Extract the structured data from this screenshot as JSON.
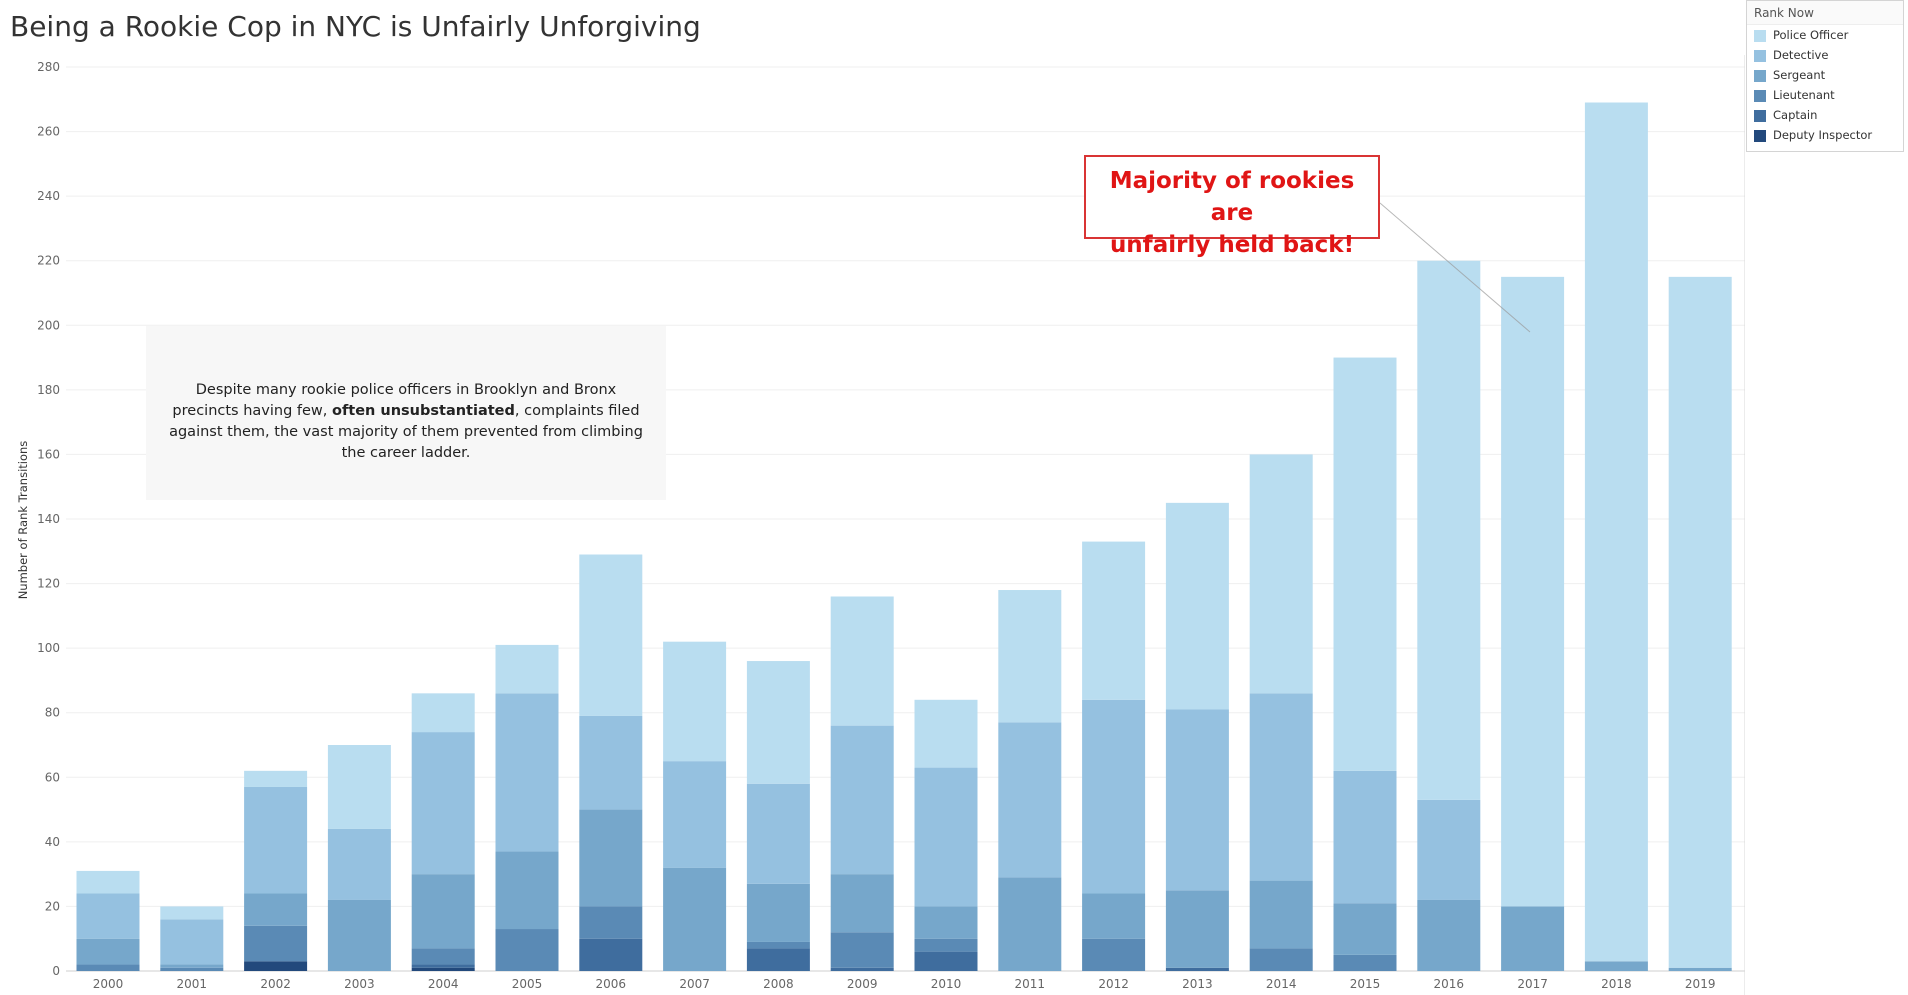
{
  "title": "Being a Rookie Cop in NYC is Unfairly Unforgiving",
  "legend": {
    "title": "Rank Now",
    "items": [
      {
        "label": "Police Officer",
        "color": "#b9ddf0"
      },
      {
        "label": "Detective",
        "color": "#95c1e0"
      },
      {
        "label": "Sergeant",
        "color": "#76a7cb"
      },
      {
        "label": "Lieutenant",
        "color": "#5a8ab5"
      },
      {
        "label": "Captain",
        "color": "#3f6d9e"
      },
      {
        "label": "Deputy Inspector",
        "color": "#22497c"
      }
    ]
  },
  "annotation": {
    "text_before": "Despite many rookie police officers in Brooklyn and Bronx precincts having few, ",
    "text_bold": "often unsubstantiated",
    "text_after": ", complaints filed against them, the vast majority of them prevented from climbing the career ladder."
  },
  "callout": {
    "line1": "Majority of rookies are",
    "line2": "unfairly held back!"
  },
  "chart_data": {
    "type": "bar",
    "stacked": true,
    "title": "Being a Rookie Cop in NYC is Unfairly Unforgiving",
    "xlabel": "",
    "ylabel": "Number of Rank Transitions",
    "ylim": [
      0,
      280
    ],
    "yticks": [
      0,
      20,
      40,
      60,
      80,
      100,
      120,
      140,
      160,
      180,
      200,
      220,
      240,
      260,
      280
    ],
    "grid": true,
    "legend_position": "top-right",
    "categories": [
      "2000",
      "2001",
      "2002",
      "2003",
      "2004",
      "2005",
      "2006",
      "2007",
      "2008",
      "2009",
      "2010",
      "2011",
      "2012",
      "2013",
      "2014",
      "2015",
      "2016",
      "2017",
      "2018",
      "2019"
    ],
    "series": [
      {
        "name": "Deputy Inspector",
        "color": "#22497c",
        "values": [
          0,
          0,
          3,
          0,
          1,
          0,
          0,
          0,
          0,
          0,
          0,
          0,
          0,
          0,
          0,
          0,
          0,
          0,
          0,
          0
        ]
      },
      {
        "name": "Captain",
        "color": "#3f6d9e",
        "values": [
          0,
          0,
          0,
          0,
          1,
          0,
          10,
          0,
          7,
          1,
          6,
          0,
          0,
          1,
          0,
          0,
          0,
          0,
          0,
          0
        ]
      },
      {
        "name": "Lieutenant",
        "color": "#5a8ab5",
        "values": [
          2,
          1,
          11,
          0,
          5,
          13,
          10,
          0,
          2,
          11,
          4,
          0,
          10,
          0,
          7,
          5,
          0,
          0,
          0,
          0
        ]
      },
      {
        "name": "Sergeant",
        "color": "#76a7cb",
        "values": [
          8,
          1,
          10,
          22,
          23,
          24,
          30,
          32,
          18,
          18,
          10,
          29,
          14,
          24,
          21,
          16,
          22,
          20,
          3,
          1
        ]
      },
      {
        "name": "Detective",
        "color": "#95c1e0",
        "values": [
          14,
          14,
          33,
          22,
          44,
          49,
          29,
          33,
          31,
          46,
          43,
          48,
          60,
          56,
          58,
          41,
          31,
          0,
          0,
          0
        ]
      },
      {
        "name": "Police Officer",
        "color": "#b9ddf0",
        "values": [
          7,
          4,
          5,
          26,
          12,
          15,
          50,
          37,
          38,
          40,
          21,
          41,
          49,
          64,
          74,
          128,
          167,
          195,
          266,
          214
        ]
      }
    ]
  }
}
